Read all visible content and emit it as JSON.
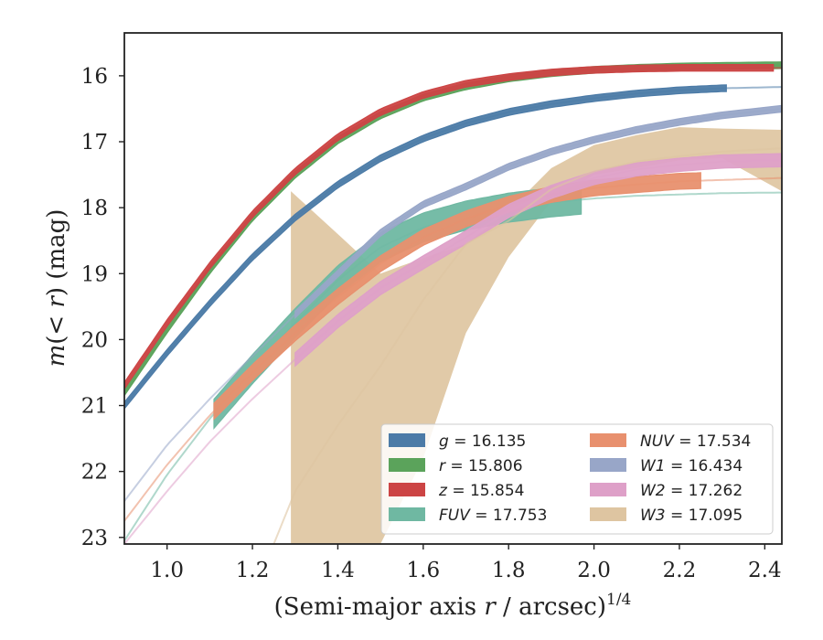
{
  "chart_data": {
    "type": "line",
    "title": "",
    "xlabel": "(Semi-major axis r / arcsec)",
    "xlabel_parts": {
      "pre": "(Semi-major axis ",
      "var": "r",
      "post": " / arcsec)",
      "sup": "1/4"
    },
    "ylabel": "m(< r) (mag)",
    "ylabel_parts": {
      "m": "m",
      "lt": "(< ",
      "r": "r",
      "close": ")",
      "unit": " (mag)"
    },
    "xlim": [
      0.9,
      2.44
    ],
    "ylim": [
      23.1,
      15.35
    ],
    "y_inverted": true,
    "xticks": [
      1.0,
      1.2,
      1.4,
      1.6,
      1.8,
      2.0,
      2.2,
      2.4
    ],
    "xtick_labels": [
      "1.0",
      "1.2",
      "1.4",
      "1.6",
      "1.8",
      "2.0",
      "2.2",
      "2.4"
    ],
    "yticks": [
      16,
      17,
      18,
      19,
      20,
      21,
      22,
      23
    ],
    "ytick_labels": [
      "16",
      "17",
      "18",
      "19",
      "20",
      "21",
      "22",
      "23"
    ],
    "grid": false,
    "legend_position": "lower-right",
    "series": [
      {
        "name": "g = 16.135",
        "label_var": "g",
        "label_value": "16.135",
        "color": "#4c7ba7",
        "x": [
          0.9,
          1.0,
          1.1,
          1.2,
          1.3,
          1.4,
          1.5,
          1.6,
          1.7,
          1.8,
          1.9,
          2.0,
          2.1,
          2.2,
          2.3,
          2.44
        ],
        "y": [
          21.0,
          20.2,
          19.45,
          18.75,
          18.15,
          17.65,
          17.25,
          16.95,
          16.72,
          16.55,
          16.43,
          16.34,
          16.27,
          16.22,
          16.19,
          16.17
        ],
        "band_from": 0.9,
        "band_to": 2.31,
        "band_width": 0.05
      },
      {
        "name": "r = 15.806",
        "label_var": "r",
        "label_value": "15.806",
        "color": "#5ba35b",
        "x": [
          0.9,
          1.0,
          1.1,
          1.2,
          1.3,
          1.4,
          1.5,
          1.6,
          1.7,
          1.8,
          1.9,
          2.0,
          2.1,
          2.2,
          2.3,
          2.44
        ],
        "y": [
          20.8,
          19.85,
          18.95,
          18.15,
          17.5,
          16.98,
          16.6,
          16.33,
          16.16,
          16.04,
          15.96,
          15.91,
          15.88,
          15.86,
          15.85,
          15.84
        ],
        "band_from": 0.9,
        "band_to": 2.44,
        "band_width": 0.05
      },
      {
        "name": "z = 15.854",
        "label_var": "z",
        "label_value": "15.854",
        "color": "#cc4444",
        "x": [
          0.9,
          1.0,
          1.1,
          1.2,
          1.3,
          1.4,
          1.5,
          1.6,
          1.7,
          1.8,
          1.9,
          2.0,
          2.1,
          2.2,
          2.3,
          2.44
        ],
        "y": [
          20.7,
          19.75,
          18.88,
          18.1,
          17.45,
          16.93,
          16.55,
          16.29,
          16.12,
          16.02,
          15.95,
          15.91,
          15.89,
          15.88,
          15.88,
          15.88
        ],
        "band_from": 0.9,
        "band_to": 2.42,
        "band_width": 0.05
      },
      {
        "name": "FUV = 17.753",
        "label_var": "FUV",
        "label_value": "17.753",
        "color": "#6fb8a2",
        "x": [
          0.9,
          1.0,
          1.1,
          1.2,
          1.3,
          1.4,
          1.5,
          1.6,
          1.7,
          1.8,
          1.9,
          2.0,
          2.1,
          2.2,
          2.3,
          2.44
        ],
        "y": [
          23.05,
          22.05,
          21.2,
          20.45,
          19.75,
          19.1,
          18.6,
          18.3,
          18.12,
          18.0,
          17.92,
          17.86,
          17.82,
          17.8,
          17.78,
          17.77
        ],
        "band_from": 1.11,
        "band_to": 1.97,
        "band_width": 0.22
      },
      {
        "name": "NUV = 17.534",
        "label_var": "NUV",
        "label_value": "17.534",
        "color": "#e8906e",
        "x": [
          0.9,
          1.0,
          1.1,
          1.2,
          1.3,
          1.4,
          1.5,
          1.6,
          1.7,
          1.8,
          1.9,
          2.0,
          2.1,
          2.2,
          2.3,
          2.44
        ],
        "y": [
          22.75,
          21.9,
          21.15,
          20.5,
          19.9,
          19.35,
          18.85,
          18.45,
          18.17,
          17.95,
          17.8,
          17.7,
          17.65,
          17.6,
          17.58,
          17.55
        ],
        "band_from": 1.11,
        "band_to": 2.25,
        "band_width": 0.12
      },
      {
        "name": "W1 = 16.434",
        "label_var": "W1",
        "label_value": "16.434",
        "color": "#98a6c8",
        "x": [
          0.9,
          1.0,
          1.1,
          1.2,
          1.3,
          1.4,
          1.5,
          1.6,
          1.7,
          1.8,
          1.9,
          2.0,
          2.1,
          2.2,
          2.3,
          2.44
        ],
        "y": [
          22.45,
          21.6,
          20.9,
          20.25,
          19.62,
          19.0,
          18.38,
          17.95,
          17.68,
          17.38,
          17.15,
          16.97,
          16.82,
          16.7,
          16.6,
          16.5
        ],
        "band_from": 1.3,
        "band_to": 2.44,
        "band_width": 0.05
      },
      {
        "name": "W2 = 17.262",
        "label_var": "W2",
        "label_value": "17.262",
        "color": "#dea0c8",
        "x": [
          0.9,
          1.0,
          1.1,
          1.2,
          1.3,
          1.4,
          1.5,
          1.6,
          1.7,
          1.8,
          1.9,
          2.0,
          2.1,
          2.2,
          2.3,
          2.44
        ],
        "y": [
          23.1,
          22.3,
          21.55,
          20.9,
          20.3,
          19.72,
          19.22,
          18.83,
          18.45,
          18.05,
          17.76,
          17.55,
          17.42,
          17.35,
          17.3,
          17.28
        ],
        "band_from": 1.3,
        "band_to": 2.44,
        "band_width": 0.1
      },
      {
        "name": "W3 = 17.095",
        "label_var": "W3",
        "label_value": "17.095",
        "color": "#dec5a1",
        "x": [
          1.25,
          1.3,
          1.4,
          1.5,
          1.6,
          1.7,
          1.8,
          1.9,
          2.0,
          2.1,
          2.2,
          2.3,
          2.44
        ],
        "y": [
          23.1,
          22.3,
          21.3,
          20.4,
          19.4,
          18.55,
          18.2,
          17.72,
          17.45,
          17.3,
          17.22,
          17.15,
          17.1
        ]
      }
    ],
    "w3_band": {
      "upper": {
        "x": [
          1.29,
          1.29,
          1.4,
          1.5,
          1.55,
          1.62,
          1.7,
          1.8,
          1.9,
          2.0,
          2.1,
          2.2,
          2.3,
          2.44
        ],
        "y": [
          23.1,
          17.75,
          18.4,
          19.0,
          18.88,
          18.72,
          18.55,
          18.05,
          17.4,
          17.05,
          16.9,
          16.78,
          16.8,
          16.82
        ]
      },
      "lower": {
        "x": [
          1.29,
          1.5,
          1.6,
          1.7,
          1.8,
          1.9,
          2.0,
          2.1,
          2.2,
          2.3,
          2.44
        ],
        "y": [
          23.1,
          23.1,
          21.8,
          19.9,
          18.75,
          17.9,
          17.5,
          17.4,
          17.28,
          17.25,
          17.75
        ]
      }
    }
  }
}
